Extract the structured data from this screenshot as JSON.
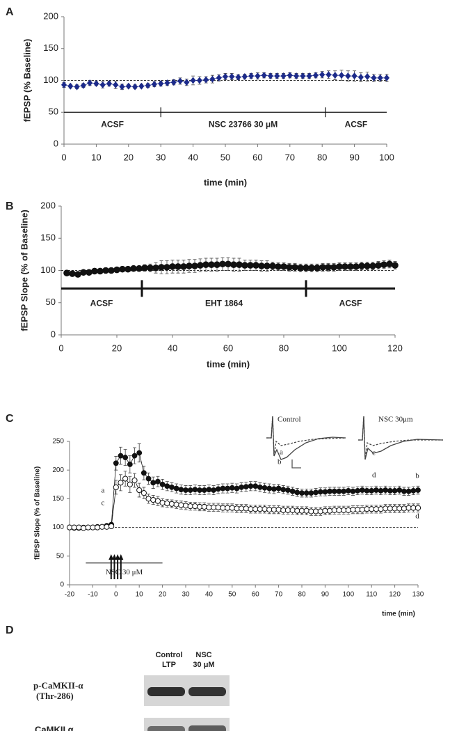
{
  "chart_data": [
    {
      "panel": "A",
      "type": "line",
      "x": [
        0,
        2,
        4,
        6,
        8,
        10,
        12,
        14,
        16,
        18,
        20,
        22,
        24,
        26,
        28,
        30,
        32,
        34,
        36,
        38,
        40,
        42,
        44,
        46,
        48,
        50,
        52,
        54,
        56,
        58,
        60,
        62,
        64,
        66,
        68,
        70,
        72,
        74,
        76,
        78,
        80,
        82,
        84,
        86,
        88,
        90,
        92,
        94,
        96,
        98,
        100
      ],
      "series": [
        {
          "color": "#1c2a8a",
          "marker": "diamond",
          "filled": true,
          "values": [
            93,
            91,
            90,
            92,
            96,
            95,
            93,
            95,
            93,
            90,
            91,
            90,
            91,
            92,
            94,
            95,
            96,
            97,
            99,
            97,
            100,
            100,
            101,
            102,
            104,
            106,
            106,
            105,
            106,
            107,
            107,
            108,
            107,
            107,
            107,
            108,
            107,
            107,
            107,
            108,
            109,
            109,
            108,
            108,
            107,
            107,
            105,
            106,
            104,
            104,
            104
          ],
          "errors": [
            4,
            3,
            3,
            3,
            4,
            3,
            5,
            4,
            6,
            4,
            3,
            3,
            3,
            3,
            4,
            4,
            4,
            4,
            5,
            5,
            7,
            6,
            5,
            6,
            5,
            5,
            5,
            4,
            4,
            4,
            5,
            4,
            4,
            4,
            4,
            4,
            4,
            4,
            4,
            4,
            5,
            6,
            7,
            8,
            8,
            8,
            7,
            7,
            6,
            6,
            6
          ]
        }
      ],
      "xlim": [
        0,
        100
      ],
      "xticks": [
        0,
        10,
        20,
        30,
        40,
        50,
        60,
        70,
        80,
        90,
        100
      ],
      "ylim": [
        0,
        200
      ],
      "yticks": [
        0,
        50,
        100,
        150,
        200
      ],
      "xlabel": "time (min)",
      "ylabel": "fEPSP (% Baseline)",
      "reference_line": 100,
      "segment_y": 50,
      "segments": [
        {
          "label": "ACSF",
          "start": 0,
          "end": 30
        },
        {
          "label": "NSC 23766 30 μM",
          "start": 30,
          "end": 81
        },
        {
          "label": "ACSF",
          "start": 81,
          "end": 100
        }
      ]
    },
    {
      "panel": "B",
      "type": "line",
      "x": [
        2,
        4,
        6,
        8,
        10,
        12,
        14,
        16,
        18,
        20,
        22,
        24,
        26,
        28,
        30,
        32,
        34,
        36,
        38,
        40,
        42,
        44,
        46,
        48,
        50,
        52,
        54,
        56,
        58,
        60,
        62,
        64,
        66,
        68,
        70,
        72,
        74,
        76,
        78,
        80,
        82,
        84,
        86,
        88,
        90,
        92,
        94,
        96,
        98,
        100,
        102,
        104,
        106,
        108,
        110,
        112,
        114,
        116,
        118,
        120
      ],
      "series": [
        {
          "color": "#111111",
          "marker": "circle",
          "filled": true,
          "values": [
            96,
            95,
            94,
            97,
            97,
            99,
            99,
            100,
            100,
            101,
            102,
            102,
            103,
            103,
            104,
            104,
            104,
            105,
            105,
            106,
            106,
            106,
            107,
            107,
            108,
            109,
            109,
            109,
            110,
            110,
            109,
            109,
            108,
            108,
            108,
            107,
            107,
            107,
            106,
            106,
            105,
            105,
            104,
            104,
            104,
            104,
            105,
            105,
            105,
            106,
            106,
            106,
            106,
            107,
            107,
            107,
            108,
            109,
            110,
            108
          ],
          "errors": [
            3,
            3,
            3,
            3,
            3,
            3,
            3,
            3,
            3,
            3,
            3,
            4,
            4,
            4,
            5,
            6,
            8,
            10,
            10,
            10,
            10,
            10,
            10,
            10,
            10,
            10,
            10,
            10,
            10,
            10,
            10,
            10,
            8,
            8,
            8,
            8,
            8,
            6,
            6,
            6,
            6,
            6,
            6,
            6,
            6,
            6,
            6,
            6,
            6,
            6,
            6,
            6,
            6,
            6,
            6,
            6,
            6,
            6,
            6,
            6
          ]
        }
      ],
      "xlim": [
        0,
        120
      ],
      "xticks": [
        0,
        20,
        40,
        60,
        80,
        100,
        120
      ],
      "ylim": [
        0,
        200
      ],
      "yticks": [
        0,
        50,
        100,
        150,
        200
      ],
      "xlabel": "time (min)",
      "ylabel": "fEPSP Slope (% of Baseline)",
      "reference_line": 100,
      "segment_y": 72,
      "segments": [
        {
          "label": "ACSF",
          "start": 0,
          "end": 29
        },
        {
          "label": "EHT 1864",
          "start": 29,
          "end": 88
        },
        {
          "label": "ACSF",
          "start": 88,
          "end": 120
        }
      ]
    },
    {
      "panel": "C",
      "type": "line",
      "x": [
        -20,
        -18,
        -16,
        -14,
        -12,
        -10,
        -8,
        -6,
        -4,
        -2,
        0,
        2,
        4,
        6,
        8,
        10,
        12,
        14,
        16,
        18,
        20,
        22,
        24,
        26,
        28,
        30,
        32,
        34,
        36,
        38,
        40,
        42,
        44,
        46,
        48,
        50,
        52,
        54,
        56,
        58,
        60,
        62,
        64,
        66,
        68,
        70,
        72,
        74,
        76,
        78,
        80,
        82,
        84,
        86,
        88,
        90,
        92,
        94,
        96,
        98,
        100,
        102,
        104,
        106,
        108,
        110,
        112,
        114,
        116,
        118,
        120,
        122,
        124,
        126,
        128,
        130
      ],
      "series": [
        {
          "color": "#111111",
          "marker": "circle",
          "filled": true,
          "values": [
            100,
            99,
            99,
            100,
            100,
            100,
            101,
            101,
            103,
            105,
            212,
            225,
            222,
            210,
            225,
            230,
            195,
            185,
            178,
            180,
            175,
            172,
            170,
            168,
            166,
            165,
            165,
            166,
            165,
            165,
            166,
            165,
            167,
            168,
            168,
            169,
            168,
            170,
            171,
            172,
            172,
            170,
            169,
            168,
            167,
            168,
            166,
            165,
            163,
            161,
            160,
            160,
            160,
            161,
            162,
            162,
            163,
            163,
            163,
            163,
            164,
            163,
            164,
            165,
            164,
            164,
            165,
            164,
            165,
            164,
            164,
            165,
            163,
            163,
            164,
            165
          ],
          "errors": [
            3,
            3,
            3,
            3,
            3,
            3,
            3,
            3,
            3,
            3,
            12,
            15,
            14,
            15,
            14,
            16,
            12,
            10,
            10,
            9,
            9,
            8,
            8,
            8,
            8,
            8,
            8,
            8,
            8,
            8,
            8,
            8,
            8,
            8,
            8,
            8,
            8,
            8,
            8,
            8,
            8,
            8,
            8,
            8,
            8,
            7,
            7,
            7,
            7,
            7,
            7,
            7,
            7,
            7,
            7,
            7,
            7,
            7,
            7,
            7,
            7,
            7,
            7,
            7,
            7,
            7,
            7,
            7,
            7,
            7,
            7,
            7,
            7,
            7,
            7,
            7
          ]
        },
        {
          "color": "#111111",
          "marker": "circle",
          "filled": false,
          "values": [
            100,
            100,
            100,
            99,
            100,
            100,
            100,
            101,
            101,
            102,
            170,
            178,
            185,
            175,
            182,
            165,
            160,
            150,
            148,
            146,
            143,
            142,
            141,
            140,
            139,
            138,
            137,
            137,
            136,
            136,
            135,
            135,
            135,
            134,
            134,
            134,
            133,
            133,
            133,
            132,
            132,
            132,
            132,
            131,
            131,
            131,
            130,
            130,
            130,
            129,
            129,
            129,
            128,
            128,
            128,
            129,
            129,
            130,
            130,
            130,
            130,
            131,
            131,
            131,
            132,
            132,
            132,
            132,
            133,
            133,
            133,
            133,
            133,
            134,
            134,
            134
          ],
          "errors": [
            3,
            3,
            3,
            3,
            3,
            3,
            3,
            3,
            3,
            3,
            12,
            14,
            13,
            14,
            12,
            12,
            10,
            8,
            8,
            8,
            7,
            7,
            7,
            7,
            7,
            7,
            7,
            7,
            7,
            7,
            7,
            7,
            7,
            7,
            7,
            7,
            7,
            7,
            7,
            7,
            7,
            7,
            7,
            7,
            7,
            7,
            7,
            7,
            7,
            7,
            7,
            7,
            7,
            7,
            7,
            7,
            7,
            7,
            7,
            7,
            7,
            7,
            7,
            7,
            7,
            7,
            7,
            7,
            7,
            7,
            7,
            7,
            7,
            7,
            7,
            7
          ]
        }
      ],
      "xlim": [
        -20,
        130
      ],
      "xticks": [
        -20,
        -10,
        0,
        10,
        20,
        30,
        40,
        50,
        60,
        70,
        80,
        90,
        100,
        110,
        120,
        130
      ],
      "ylim": [
        0,
        250
      ],
      "yticks": [
        0,
        50,
        100,
        150,
        200,
        250
      ],
      "xlabel": "time (min)",
      "ylabel": "fEPSP Slope (% of Baseline)",
      "reference_line": 100,
      "segment_y": 38,
      "segments": [
        {
          "label": "NSC 30 μM",
          "start": -13,
          "end": 20
        }
      ],
      "stimuli": [
        -2.1,
        -0.7,
        0.7,
        2.1
      ],
      "trace_labels": [
        "a",
        "c",
        "b",
        "d"
      ],
      "insets": [
        {
          "title": "Control",
          "labels": [
            "a",
            "b"
          ]
        },
        {
          "title": "NSC 30μm",
          "labels": [
            "c",
            "d"
          ]
        }
      ]
    }
  ],
  "blot": {
    "panel": "D",
    "lanes": [
      [
        "Control",
        "LTP"
      ],
      [
        "NSC",
        "30 μM"
      ]
    ],
    "rows": [
      [
        "p-CaMKII-α",
        "(Thr-286)"
      ],
      [
        "CaMKII α"
      ]
    ]
  }
}
